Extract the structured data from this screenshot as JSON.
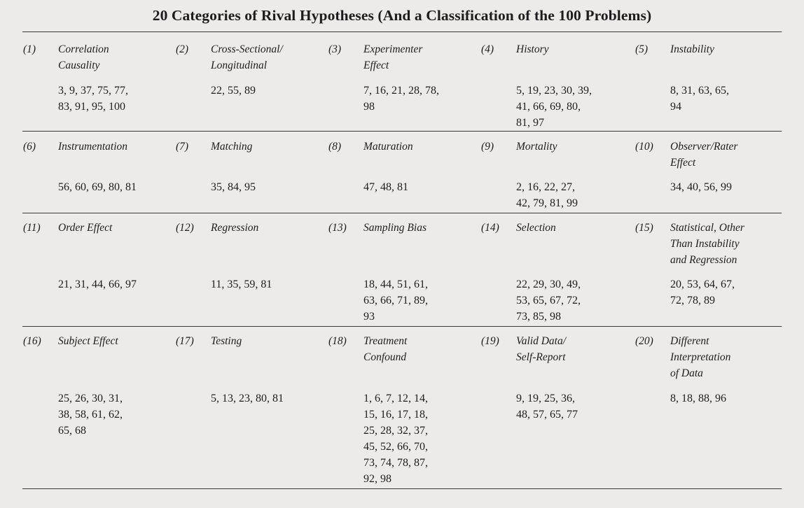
{
  "title": "20 Categories of Rival Hypotheses (And a Classification of the 100 Problems)",
  "categories": [
    {
      "num": "(1)",
      "name": "Correlation\nCausality",
      "problems": "3, 9, 37, 75, 77,\n83, 91, 95, 100"
    },
    {
      "num": "(2)",
      "name": "Cross-Sectional/\nLongitudinal",
      "problems": "22, 55, 89"
    },
    {
      "num": "(3)",
      "name": "Experimenter\nEffect",
      "problems": "7, 16, 21, 28, 78,\n98"
    },
    {
      "num": "(4)",
      "name": "History",
      "problems": "5, 19, 23, 30, 39,\n41, 66, 69, 80,\n81, 97"
    },
    {
      "num": "(5)",
      "name": "Instability",
      "problems": "8, 31, 63, 65,\n94"
    },
    {
      "num": "(6)",
      "name": "Instrumentation",
      "problems": "56, 60, 69, 80, 81"
    },
    {
      "num": "(7)",
      "name": "Matching",
      "problems": "35, 84, 95"
    },
    {
      "num": "(8)",
      "name": "Maturation",
      "problems": "47, 48, 81"
    },
    {
      "num": "(9)",
      "name": "Mortality",
      "problems": "2, 16, 22, 27,\n42, 79, 81, 99"
    },
    {
      "num": "(10)",
      "name": "Observer/Rater\nEffect",
      "problems": "34, 40, 56, 99"
    },
    {
      "num": "(11)",
      "name": "Order Effect",
      "problems": "21, 31, 44, 66, 97"
    },
    {
      "num": "(12)",
      "name": "Regression",
      "problems": "11, 35, 59, 81"
    },
    {
      "num": "(13)",
      "name": "Sampling Bias",
      "problems": "18, 44, 51, 61,\n63, 66, 71, 89,\n93"
    },
    {
      "num": "(14)",
      "name": "Selection",
      "problems": "22, 29, 30, 49,\n53, 65, 67, 72,\n73, 85, 98"
    },
    {
      "num": "(15)",
      "name": "Statistical, Other\nThan Instability\nand Regression",
      "problems": "20, 53, 64, 67,\n72, 78, 89"
    },
    {
      "num": "(16)",
      "name": "Subject Effect",
      "problems": "25, 26, 30, 31,\n38, 58, 61, 62,\n65, 68"
    },
    {
      "num": "(17)",
      "name": "Testing",
      "problems": "5, 13, 23, 80, 81"
    },
    {
      "num": "(18)",
      "name": "Treatment\nConfound",
      "problems": "1, 6, 7, 12, 14,\n15, 16, 17, 18,\n25, 28, 32, 37,\n45, 52, 66, 70,\n73, 74, 78, 87,\n92, 98"
    },
    {
      "num": "(19)",
      "name": "Valid Data/\nSelf-Report",
      "problems": "9, 19, 25, 36,\n48, 57, 65, 77"
    },
    {
      "num": "(20)",
      "name": "Different\nInterpretation\nof Data",
      "problems": "8, 18, 88, 96"
    }
  ]
}
